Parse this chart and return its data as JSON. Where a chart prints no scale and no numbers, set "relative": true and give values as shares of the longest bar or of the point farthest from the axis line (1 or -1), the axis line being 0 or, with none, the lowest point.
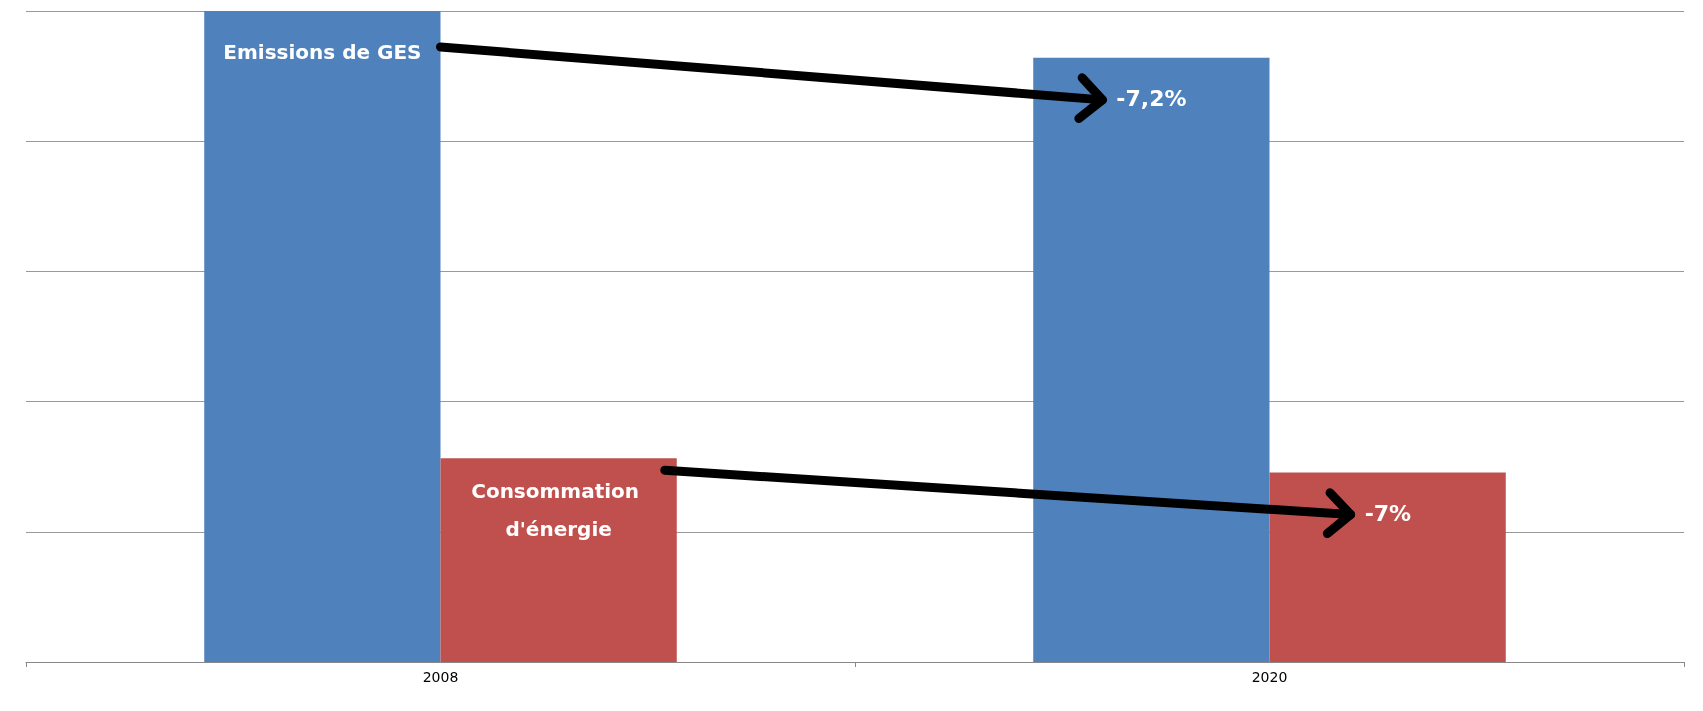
{
  "chart_data": {
    "type": "bar",
    "relative": true,
    "categories": [
      "2008",
      "2020"
    ],
    "series": [
      {
        "name": "Emissions de GES",
        "color": "#4f81bd",
        "values": [
          1,
          0.928
        ]
      },
      {
        "name": "Consommation d'énergie",
        "color": "#c0504d",
        "values": [
          0.313,
          0.291
        ]
      }
    ],
    "annotations": [
      "-7,2%",
      "-7%"
    ],
    "grid": "y",
    "legend": false
  }
}
